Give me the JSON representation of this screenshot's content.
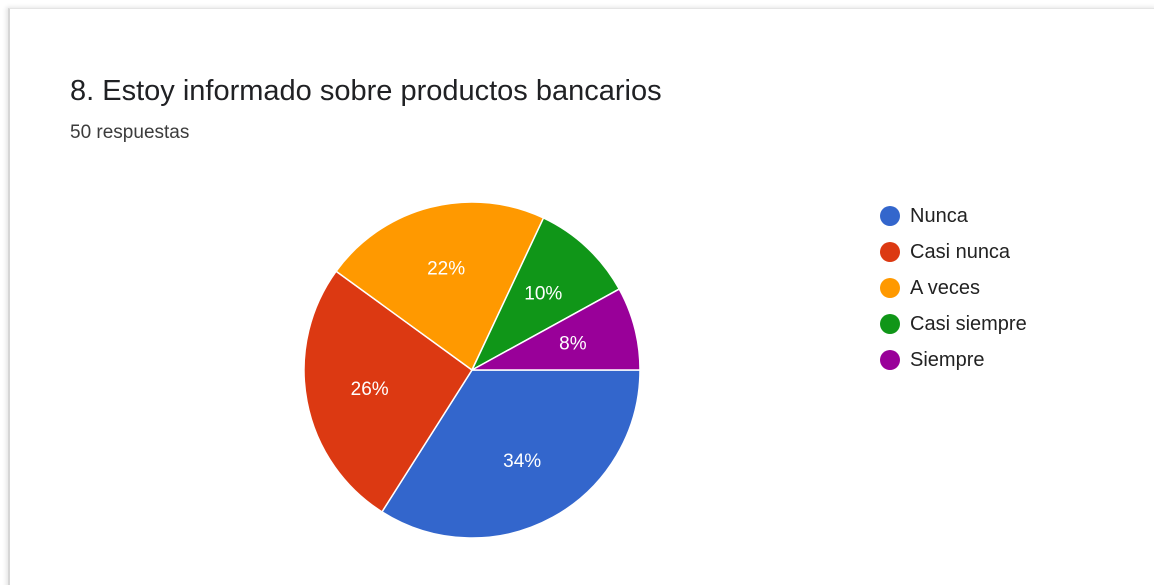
{
  "chart_data": {
    "type": "pie",
    "title": "8. Estoy informado sobre productos bancarios",
    "subtitle": "50 respuestas",
    "series": [
      {
        "name": "Nunca",
        "value": 34,
        "label": "34%",
        "color": "#3366cc"
      },
      {
        "name": "Casi nunca",
        "value": 26,
        "label": "26%",
        "color": "#dc3912"
      },
      {
        "name": "A veces",
        "value": 22,
        "label": "22%",
        "color": "#ff9900"
      },
      {
        "name": "Casi siempre",
        "value": 10,
        "label": "10%",
        "color": "#109618"
      },
      {
        "name": "Siempre",
        "value": 8,
        "label": "8%",
        "color": "#990099"
      }
    ],
    "legend_position": "right"
  }
}
